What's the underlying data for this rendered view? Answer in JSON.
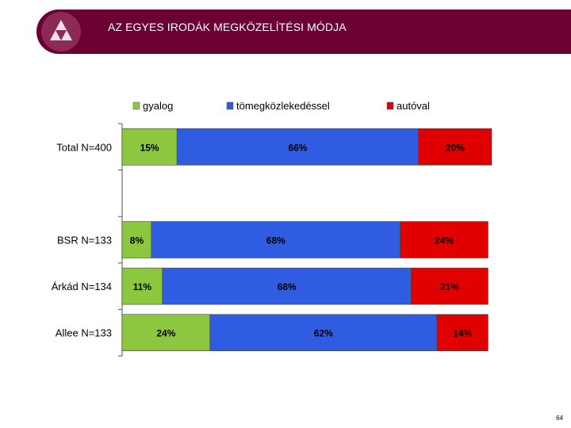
{
  "header": {
    "title": "AZ EGYES IRODÁK MEGKÖZELÍTÉSI MÓDJA"
  },
  "page_number": "64",
  "colors": {
    "header_bg": "#6b0033",
    "gyalog": "#8dc63f",
    "tomeg": "#2f5ce0",
    "autoval": "#e00000"
  },
  "chart_data": {
    "type": "bar",
    "orientation": "horizontal",
    "stacked": true,
    "legend_position": "top",
    "series": [
      {
        "name": "gyalog",
        "color": "#8dc63f"
      },
      {
        "name": "tömegközlekedéssel",
        "color": "#2f5ce0"
      },
      {
        "name": "autóval",
        "color": "#e00000"
      }
    ],
    "rows": [
      {
        "label": "Total N=400",
        "values": [
          15,
          66,
          20
        ],
        "labels": [
          "15%",
          "66%",
          "20%"
        ]
      },
      {
        "label": "",
        "values": [],
        "labels": []
      },
      {
        "label": "BSR N=133",
        "values": [
          8,
          68,
          24
        ],
        "labels": [
          "8%",
          "68%",
          "24%"
        ]
      },
      {
        "label": "Árkád N=134",
        "values": [
          11,
          68,
          21
        ],
        "labels": [
          "11%",
          "68%",
          "21%"
        ]
      },
      {
        "label": "Allee N=133",
        "values": [
          24,
          62,
          14
        ],
        "labels": [
          "24%",
          "62%",
          "14%"
        ]
      }
    ],
    "xlim": [
      0,
      101
    ]
  }
}
